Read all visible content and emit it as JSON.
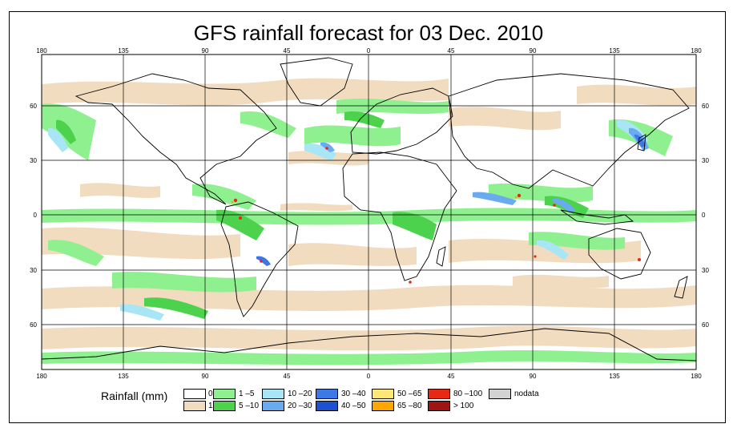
{
  "title": "GFS rainfall forecast for 03 Dec. 2010",
  "map": {
    "lon_top": [
      "180",
      "135",
      "90",
      "45",
      "0",
      "45",
      "90",
      "135",
      "180"
    ],
    "lon_bottom": [
      "180",
      "135",
      "90",
      "45",
      "0",
      "45",
      "90",
      "135",
      "180"
    ],
    "lat_left": [
      "60",
      "30",
      "0",
      "30",
      "60"
    ],
    "lat_right": [
      "60",
      "30",
      "0",
      "30",
      "60"
    ]
  },
  "legend": {
    "title": "Rainfall (mm)",
    "items": [
      {
        "label": "0",
        "color": "#ffffff"
      },
      {
        "label": "1",
        "color": "#f2dcc0"
      },
      {
        "label": "1 –5",
        "color": "#8ef08e"
      },
      {
        "label": "5 –10",
        "color": "#4cd24c"
      },
      {
        "label": "10 –20",
        "color": "#a8e6f5"
      },
      {
        "label": "20 –30",
        "color": "#6aaaf0"
      },
      {
        "label": "30 –40",
        "color": "#3c78e6"
      },
      {
        "label": "40 –50",
        "color": "#1e50d2"
      },
      {
        "label": "50 –65",
        "color": "#ffe678"
      },
      {
        "label": "65 –80",
        "color": "#ffa500"
      },
      {
        "label": "80 –100",
        "color": "#e62814"
      },
      {
        "label": "> 100",
        "color": "#a01414"
      },
      {
        "label": "nodata",
        "color": "#d2d2d2"
      }
    ]
  }
}
